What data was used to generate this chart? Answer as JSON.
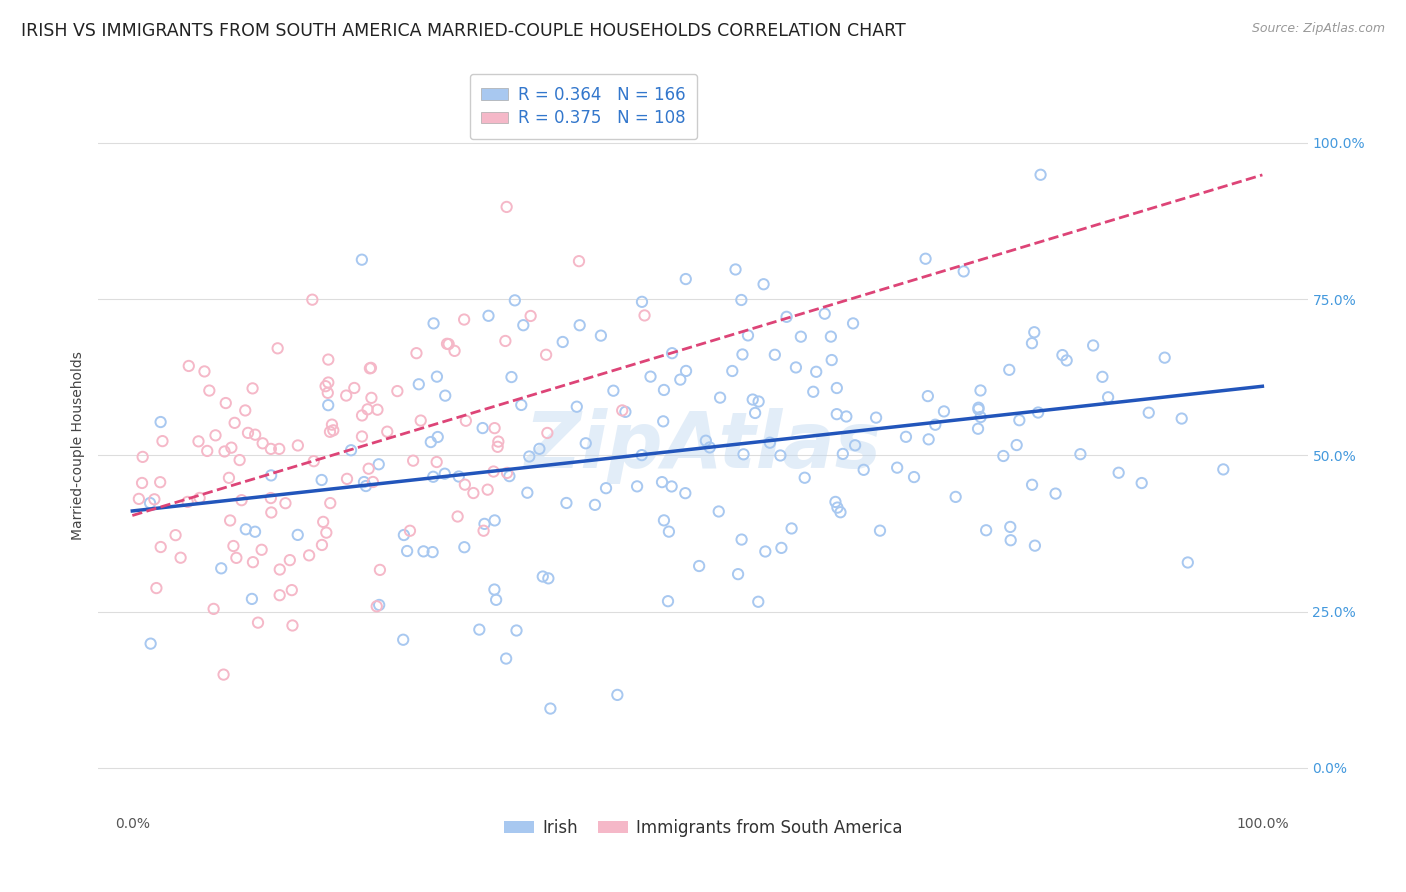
{
  "title": "IRISH VS IMMIGRANTS FROM SOUTH AMERICA MARRIED-COUPLE HOUSEHOLDS CORRELATION CHART",
  "source": "Source: ZipAtlas.com",
  "ylabel": "Married-couple Households",
  "yticks_labels": [
    "0.0%",
    "25.0%",
    "50.0%",
    "75.0%",
    "100.0%"
  ],
  "ytick_vals": [
    0.0,
    0.25,
    0.5,
    0.75,
    1.0
  ],
  "xtick_vals": [
    0.0,
    0.25,
    0.5,
    0.75,
    1.0
  ],
  "irish_R": 0.364,
  "irish_N": 166,
  "sa_R": 0.375,
  "sa_N": 108,
  "irish_color": "#a8c8f0",
  "sa_color": "#f5b8c8",
  "irish_line_color": "#2255bb",
  "sa_line_color": "#dd4477",
  "legend_irish_label": "Irish",
  "legend_sa_label": "Immigrants from South America",
  "watermark": "ZipAtlas",
  "background_color": "#ffffff",
  "grid_color": "#dddddd",
  "title_fontsize": 12.5,
  "axis_label_fontsize": 10,
  "tick_fontsize": 10,
  "legend_fontsize": 12,
  "marker_size": 55,
  "xlim": [
    -0.03,
    1.04
  ],
  "ylim": [
    -0.07,
    1.1
  ]
}
